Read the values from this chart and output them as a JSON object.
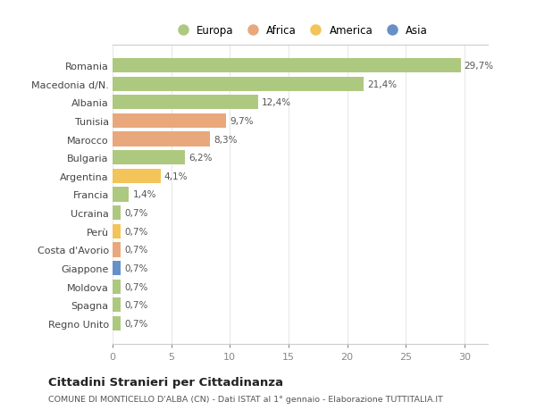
{
  "countries": [
    "Romania",
    "Macedonia d/N.",
    "Albania",
    "Tunisia",
    "Marocco",
    "Bulgaria",
    "Argentina",
    "Francia",
    "Ucraina",
    "Perù",
    "Costa d'Avorio",
    "Giappone",
    "Moldova",
    "Spagna",
    "Regno Unito"
  ],
  "values": [
    29.7,
    21.4,
    12.4,
    9.7,
    8.3,
    6.2,
    4.1,
    1.4,
    0.7,
    0.7,
    0.7,
    0.7,
    0.7,
    0.7,
    0.7
  ],
  "labels": [
    "29,7%",
    "21,4%",
    "12,4%",
    "9,7%",
    "8,3%",
    "6,2%",
    "4,1%",
    "1,4%",
    "0,7%",
    "0,7%",
    "0,7%",
    "0,7%",
    "0,7%",
    "0,7%",
    "0,7%"
  ],
  "continents": [
    "Europa",
    "Europa",
    "Europa",
    "Africa",
    "Africa",
    "Europa",
    "America",
    "Europa",
    "Europa",
    "America",
    "Africa",
    "Asia",
    "Europa",
    "Europa",
    "Europa"
  ],
  "continent_colors": {
    "Europa": "#adc97f",
    "Africa": "#e8a87c",
    "America": "#f2c45a",
    "Asia": "#6890c8"
  },
  "legend_order": [
    "Europa",
    "Africa",
    "America",
    "Asia"
  ],
  "title": "Cittadini Stranieri per Cittadinanza",
  "subtitle": "COMUNE DI MONTICELLO D'ALBA (CN) - Dati ISTAT al 1° gennaio - Elaborazione TUTTITALIA.IT",
  "xlim": [
    0,
    32
  ],
  "xticks": [
    0,
    5,
    10,
    15,
    20,
    25,
    30
  ],
  "bg_color": "#ffffff",
  "grid_color": "#e8e8e8",
  "bar_height": 0.78
}
